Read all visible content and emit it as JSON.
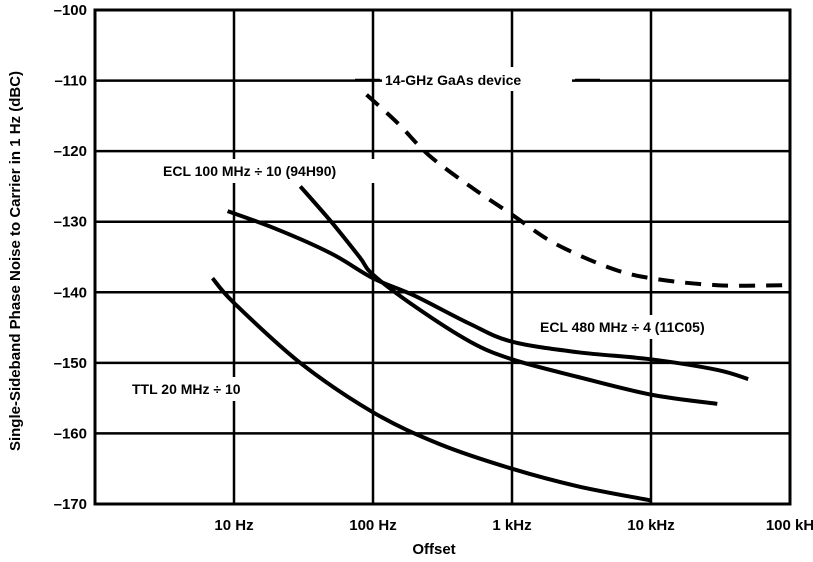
{
  "chart_data": {
    "type": "line",
    "title": "",
    "xlabel": "Offset",
    "ylabel": "Single-Sideband Phase Noise to Carrier in 1 Hz (dBC)",
    "xscale": "log",
    "xlim": [
      1,
      100000
    ],
    "ylim": [
      -170,
      -100
    ],
    "grid": true,
    "x_ticks": [
      {
        "value": 10,
        "label": "10 Hz"
      },
      {
        "value": 100,
        "label": "100 Hz"
      },
      {
        "value": 1000,
        "label": "1 kHz"
      },
      {
        "value": 10000,
        "label": "10 kHz"
      },
      {
        "value": 100000,
        "label": "100 kH"
      }
    ],
    "y_ticks": [
      {
        "value": -100,
        "label": "–100"
      },
      {
        "value": -110,
        "label": "–110"
      },
      {
        "value": -120,
        "label": "–120"
      },
      {
        "value": -130,
        "label": "–130"
      },
      {
        "value": -140,
        "label": "–140"
      },
      {
        "value": -150,
        "label": "–150"
      },
      {
        "value": -160,
        "label": "–160"
      },
      {
        "value": -170,
        "label": "–170"
      }
    ],
    "series": [
      {
        "name": "14-GHz GaAs device",
        "dashed": true,
        "points": [
          [
            90,
            -112
          ],
          [
            150,
            -116
          ],
          [
            250,
            -120.5
          ],
          [
            500,
            -125
          ],
          [
            1000,
            -129
          ],
          [
            2000,
            -133
          ],
          [
            5000,
            -136.5
          ],
          [
            10000,
            -138
          ],
          [
            30000,
            -139
          ],
          [
            100000,
            -139
          ]
        ]
      },
      {
        "name": "ECL 100 MHz ÷ 10 (94H90)",
        "dashed": false,
        "points": [
          [
            9,
            -128.5
          ],
          [
            20,
            -131
          ],
          [
            50,
            -134.5
          ],
          [
            100,
            -138
          ],
          [
            200,
            -140.5
          ],
          [
            500,
            -144.5
          ],
          [
            1000,
            -147
          ],
          [
            3000,
            -148.5
          ],
          [
            10000,
            -149.5
          ],
          [
            30000,
            -151
          ],
          [
            50000,
            -152.3
          ]
        ]
      },
      {
        "name": "ECL 480 MHz ÷ 4 (11C05)",
        "dashed": false,
        "points": [
          [
            30,
            -125
          ],
          [
            50,
            -130
          ],
          [
            80,
            -135
          ],
          [
            100,
            -137.5
          ],
          [
            200,
            -142
          ],
          [
            500,
            -147
          ],
          [
            1000,
            -149.5
          ],
          [
            3000,
            -152
          ],
          [
            10000,
            -154.5
          ],
          [
            30000,
            -155.8
          ]
        ]
      },
      {
        "name": "TTL 20 MHz ÷ 10",
        "dashed": false,
        "points": [
          [
            7,
            -138
          ],
          [
            10,
            -141.5
          ],
          [
            30,
            -150
          ],
          [
            100,
            -157
          ],
          [
            300,
            -161.5
          ],
          [
            1000,
            -165
          ],
          [
            3000,
            -167.5
          ],
          [
            10000,
            -169.5
          ]
        ]
      }
    ],
    "annotations": [
      {
        "series": 0,
        "text": "14-GHz GaAs device"
      },
      {
        "series": 1,
        "text": "ECL 100 MHz ÷ 10 (94H90)"
      },
      {
        "series": 2,
        "text": "ECL 480 MHz ÷ 4 (11C05)"
      },
      {
        "series": 3,
        "text": "TTL 20 MHz ÷ 10"
      }
    ]
  }
}
